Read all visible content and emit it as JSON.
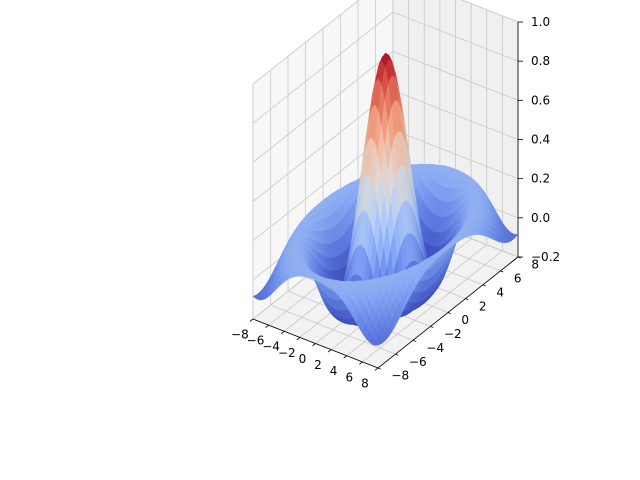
{
  "chart_data": {
    "type": "surface",
    "function": "sin(R)/R, R = sqrt(x^2 + y^2)",
    "colormap": "coolwarm",
    "x_range": [
      -8,
      8
    ],
    "y_range": [
      -8,
      8
    ],
    "z_range": [
      -0.2,
      1.0
    ],
    "grid_shown": true,
    "x_ticks": [
      -8,
      -6,
      -4,
      -2,
      0,
      2,
      4,
      6,
      8
    ],
    "y_ticks": [
      -8,
      -6,
      -4,
      -2,
      0,
      2,
      4,
      6,
      8
    ],
    "z_ticks": [
      -0.2,
      0.0,
      0.2,
      0.4,
      0.6,
      0.8,
      1.0
    ],
    "x_tick_labels": [
      "−8",
      "−6",
      "−4",
      "−2",
      "0",
      "2",
      "4",
      "6",
      "8"
    ],
    "y_tick_labels": [
      "−8",
      "−6",
      "−4",
      "−2",
      "0",
      "2",
      "4",
      "6",
      "8"
    ],
    "z_tick_labels": [
      "−0.2",
      "0.0",
      "0.2",
      "0.4",
      "0.6",
      "0.8",
      "1.0"
    ],
    "title": "",
    "xlabel": "",
    "ylabel": "",
    "zlabel": ""
  }
}
